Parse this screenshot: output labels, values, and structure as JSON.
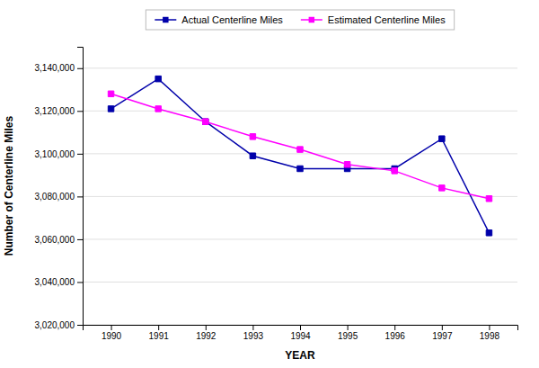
{
  "chart_data": {
    "type": "line",
    "x_label": "YEAR",
    "y_label": "Number of Centerline Miles",
    "x": [
      1990,
      1991,
      1992,
      1993,
      1994,
      1995,
      1996,
      1997,
      1998
    ],
    "series": [
      {
        "name": "Actual Centerline Miles",
        "color": "#0000AA",
        "marker": "square",
        "values": [
          3121000,
          3135000,
          3115000,
          3099000,
          3093000,
          3093000,
          3093000,
          3107000,
          3063000
        ]
      },
      {
        "name": "Estimated Centerline Miles",
        "color": "#FF00FF",
        "marker": "square",
        "values": [
          3128000,
          3121000,
          3115000,
          3108000,
          3102000,
          3095000,
          3092000,
          3084000,
          3079000
        ]
      }
    ],
    "xlim": [
      1989.4,
      1998.6
    ],
    "xticks": [
      1990,
      1991,
      1992,
      1993,
      1994,
      1995,
      1996,
      1997,
      1998
    ],
    "ylim": [
      3020000,
      3150000
    ],
    "yticks": [
      {
        "value": 3020000,
        "label": "3,020,000"
      },
      {
        "value": 3040000,
        "label": "3,040,000"
      },
      {
        "value": 3060000,
        "label": "3,060,000"
      },
      {
        "value": 3080000,
        "label": "3,080,000"
      },
      {
        "value": 3100000,
        "label": "3,100,000"
      },
      {
        "value": 3120000,
        "label": "3,120,000"
      },
      {
        "value": 3140000,
        "label": "3,140,000"
      }
    ],
    "grid": true,
    "legend": "top"
  }
}
